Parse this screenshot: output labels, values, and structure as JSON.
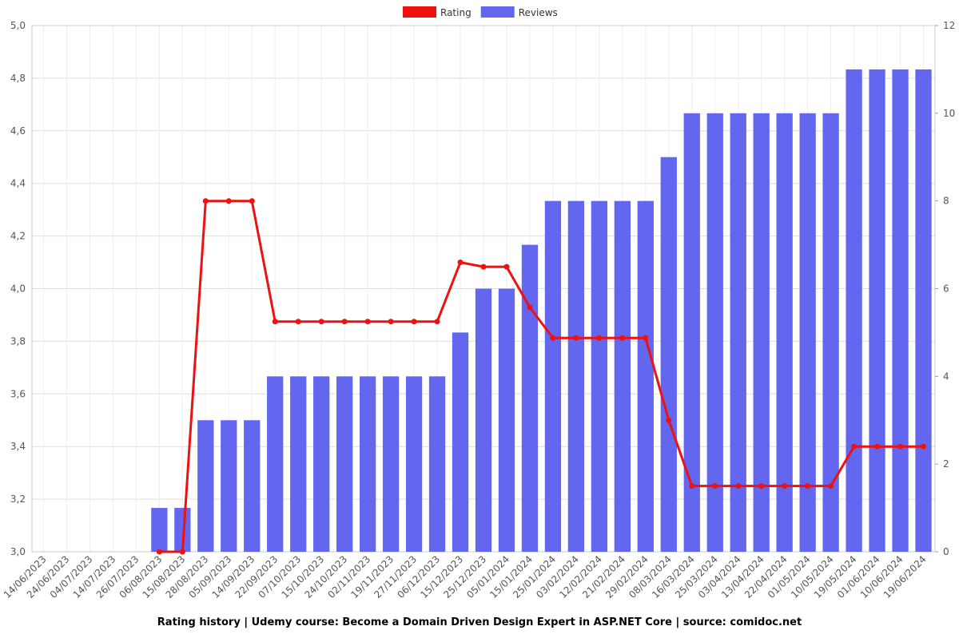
{
  "chart_data": {
    "type": "bar-line",
    "title": "Rating history | Udemy course: Become a Domain Driven Design Expert in ASP.NET Core | source: comidoc.net",
    "categories": [
      "14/06/2023",
      "24/06/2023",
      "04/07/2023",
      "14/07/2023",
      "26/07/2023",
      "06/08/2023",
      "15/08/2023",
      "28/08/2023",
      "05/09/2023",
      "14/09/2023",
      "22/09/2023",
      "07/10/2023",
      "15/10/2023",
      "24/10/2023",
      "02/11/2023",
      "19/11/2023",
      "27/11/2023",
      "06/12/2023",
      "15/12/2023",
      "25/12/2023",
      "05/01/2024",
      "15/01/2024",
      "25/01/2024",
      "03/02/2024",
      "12/02/2024",
      "21/02/2024",
      "29/02/2024",
      "08/03/2024",
      "16/03/2024",
      "25/03/2024",
      "03/04/2024",
      "13/04/2024",
      "22/04/2024",
      "01/05/2024",
      "10/05/2024",
      "19/05/2024",
      "01/06/2024",
      "10/06/2024",
      "19/06/2024"
    ],
    "series": [
      {
        "name": "Rating",
        "type": "line",
        "color": "#ee1111",
        "values": [
          null,
          null,
          null,
          null,
          null,
          3.0,
          3.0,
          4.333,
          4.333,
          4.333,
          3.875,
          3.875,
          3.875,
          3.875,
          3.875,
          3.875,
          3.875,
          3.875,
          4.1,
          4.083,
          4.083,
          3.929,
          3.8125,
          3.8125,
          3.8125,
          3.8125,
          3.8125,
          3.5,
          3.25,
          3.25,
          3.25,
          3.25,
          3.25,
          3.25,
          3.25,
          3.4,
          3.4,
          3.4,
          3.4
        ]
      },
      {
        "name": "Reviews",
        "type": "bar",
        "axis": "y2",
        "color": "#6366ee",
        "values": [
          0,
          0,
          0,
          0,
          0,
          1,
          1,
          3,
          3,
          3,
          4,
          4,
          4,
          4,
          4,
          4,
          4,
          4,
          5,
          6,
          6,
          7,
          8,
          8,
          8,
          8,
          8,
          9,
          10,
          10,
          10,
          10,
          10,
          10,
          10,
          11,
          11,
          11,
          11
        ]
      }
    ],
    "ylim": [
      3.0,
      5.0
    ],
    "yticks": [
      {
        "value": 3.0,
        "label": "3,0"
      },
      {
        "value": 3.2,
        "label": "3,2"
      },
      {
        "value": 3.4,
        "label": "3,4"
      },
      {
        "value": 3.6,
        "label": "3,6"
      },
      {
        "value": 3.8,
        "label": "3,8"
      },
      {
        "value": 4.0,
        "label": "4,0"
      },
      {
        "value": 4.2,
        "label": "4,2"
      },
      {
        "value": 4.4,
        "label": "4,4"
      },
      {
        "value": 4.6,
        "label": "4,6"
      },
      {
        "value": 4.8,
        "label": "4,8"
      },
      {
        "value": 5.0,
        "label": "5,0"
      }
    ],
    "y2lim": [
      0,
      12
    ],
    "y2ticks": [
      0,
      2,
      4,
      6,
      8,
      10,
      12
    ],
    "grid": true,
    "legend": "top"
  }
}
